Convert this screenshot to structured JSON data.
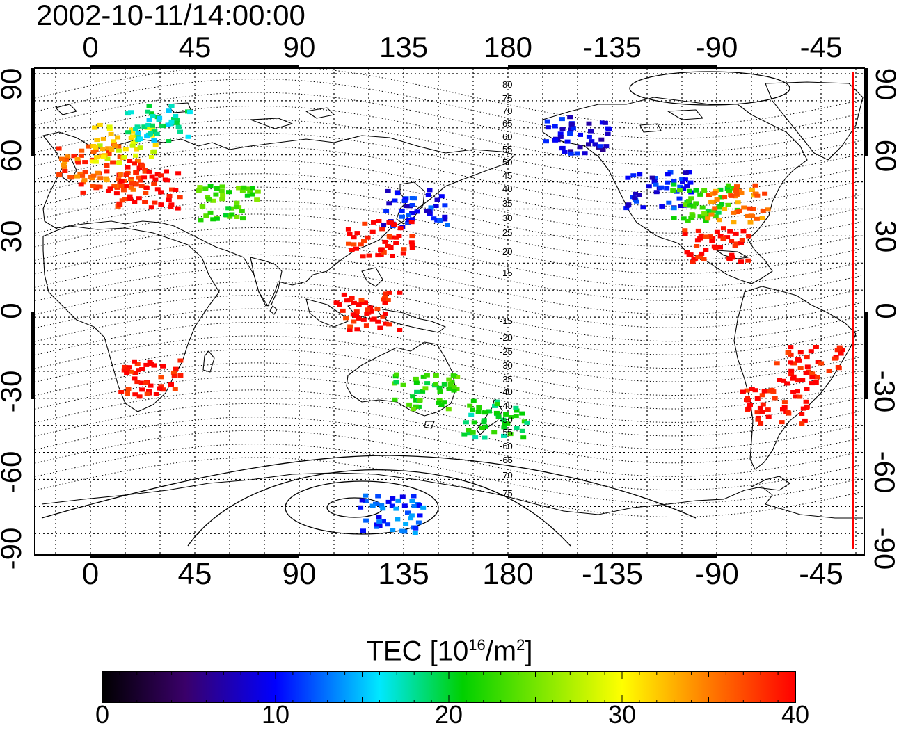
{
  "title": "2002-10-11/14:00:00",
  "map": {
    "top_ticks": [
      "0",
      "45",
      "90",
      "135",
      "180",
      "-135",
      "-90",
      "-45"
    ],
    "bottom_ticks": [
      "0",
      "45",
      "90",
      "135",
      "180",
      "-135",
      "-90",
      "-45"
    ],
    "left_ticks": [
      "90",
      "60",
      "30",
      "0",
      "-30",
      "-60",
      "-90"
    ],
    "right_ticks": [
      "90",
      "60",
      "30",
      "0",
      "-30",
      "-60",
      "-90"
    ],
    "mag_lat_labels_north": [
      "80",
      "75",
      "70",
      "65",
      "60",
      "55",
      "50",
      "45",
      "40",
      "35",
      "30",
      "25",
      "20",
      "15"
    ],
    "mag_lat_labels_south": [
      "-15",
      "-20",
      "-25",
      "-30",
      "-35",
      "-40",
      "-45",
      "-50",
      "-55",
      "-60",
      "-65",
      "-70",
      "-75"
    ],
    "terminator_color": "#ff0000"
  },
  "colorbar": {
    "title_main": "TEC  [10",
    "title_exp1": "16",
    "title_mid": "/m",
    "title_exp2": "2",
    "title_end": "]",
    "ticks": [
      "0",
      "10",
      "20",
      "30",
      "40"
    ],
    "range": [
      0,
      40
    ],
    "colormap": [
      "#000000",
      "#3a006a",
      "#0000ff",
      "#00e8ff",
      "#00d000",
      "#ffff00",
      "#ff8000",
      "#ff0000"
    ]
  },
  "chart_data": {
    "type": "heatmap",
    "title": "2002-10-11/14:00:00",
    "colorbar_label": "TEC [10^16/m^2]",
    "value_range": [
      0,
      40
    ],
    "xaxis_ticks": [
      "0",
      "45",
      "90",
      "135",
      "180",
      "-135",
      "-90",
      "-45"
    ],
    "yaxis_ticks": [
      "90",
      "60",
      "30",
      "0",
      "-30",
      "-60",
      "-90"
    ],
    "regions": [
      {
        "lon": 10,
        "lat": 50,
        "tec": 38
      },
      {
        "lon": 25,
        "lat": 45,
        "tec": 40
      },
      {
        "lon": 0,
        "lat": 55,
        "tec": 36
      },
      {
        "lon": 15,
        "lat": 62,
        "tec": 30
      },
      {
        "lon": 30,
        "lat": 70,
        "tec": 18
      },
      {
        "lon": 60,
        "lat": 40,
        "tec": 23
      },
      {
        "lon": 140,
        "lat": 38,
        "tec": 10
      },
      {
        "lon": 125,
        "lat": 27,
        "tec": 40
      },
      {
        "lon": 120,
        "lat": 0,
        "tec": 40
      },
      {
        "lon": 145,
        "lat": -30,
        "tec": 22
      },
      {
        "lon": 175,
        "lat": -40,
        "tec": 20
      },
      {
        "lon": -115,
        "lat": 45,
        "tec": 10
      },
      {
        "lon": -95,
        "lat": 40,
        "tec": 22
      },
      {
        "lon": -80,
        "lat": 40,
        "tec": 35
      },
      {
        "lon": -90,
        "lat": 25,
        "tec": 40
      },
      {
        "lon": -50,
        "lat": -20,
        "tec": 40
      },
      {
        "lon": -65,
        "lat": -35,
        "tec": 40
      },
      {
        "lon": 25,
        "lat": -25,
        "tec": 40
      },
      {
        "lon": 130,
        "lat": -75,
        "tec": 12
      },
      {
        "lon": -150,
        "lat": 65,
        "tec": 9
      }
    ]
  }
}
